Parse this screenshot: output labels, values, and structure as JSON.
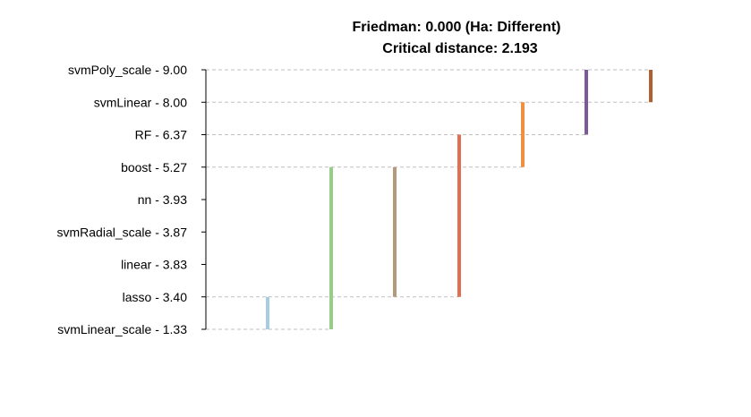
{
  "chart_data": {
    "type": "critical-distance",
    "title": "Friedman: 0.000 (Ha: Different)",
    "subtitle": "Critical distance: 2.193",
    "labels": [
      {
        "name": "svmPoly_scale",
        "rank": 9.0,
        "text": "svmPoly_scale - 9.00"
      },
      {
        "name": "svmLinear",
        "rank": 8.0,
        "text": "svmLinear - 8.00"
      },
      {
        "name": "RF",
        "rank": 6.37,
        "text": "RF - 6.37"
      },
      {
        "name": "boost",
        "rank": 5.27,
        "text": "boost - 5.27"
      },
      {
        "name": "nn",
        "rank": 3.93,
        "text": "nn - 3.93"
      },
      {
        "name": "svmRadial_scale",
        "rank": 3.87,
        "text": "svmRadial_scale - 3.87"
      },
      {
        "name": "linear",
        "rank": 3.83,
        "text": "linear - 3.83"
      },
      {
        "name": "lasso",
        "rank": 3.4,
        "text": "lasso - 3.40"
      },
      {
        "name": "svmLinear_scale",
        "rank": 1.33,
        "text": "svmLinear_scale - 1.33"
      }
    ],
    "groups": [
      {
        "from": "svmLinear_scale",
        "to": "lasso",
        "color": "#a6cee3"
      },
      {
        "from": "svmLinear_scale",
        "to": "boost",
        "color": "#99cc88"
      },
      {
        "from": "lasso",
        "to": "boost",
        "color": "#b59a7a"
      },
      {
        "from": "lasso",
        "to": "RF",
        "color": "#e07050"
      },
      {
        "from": "boost",
        "to": "svmLinear",
        "color": "#ee9040"
      },
      {
        "from": "RF",
        "to": "svmPoly_scale",
        "color": "#7a5a9a"
      },
      {
        "from": "svmLinear",
        "to": "svmPoly_scale",
        "color": "#b06030"
      }
    ],
    "grid": true
  }
}
